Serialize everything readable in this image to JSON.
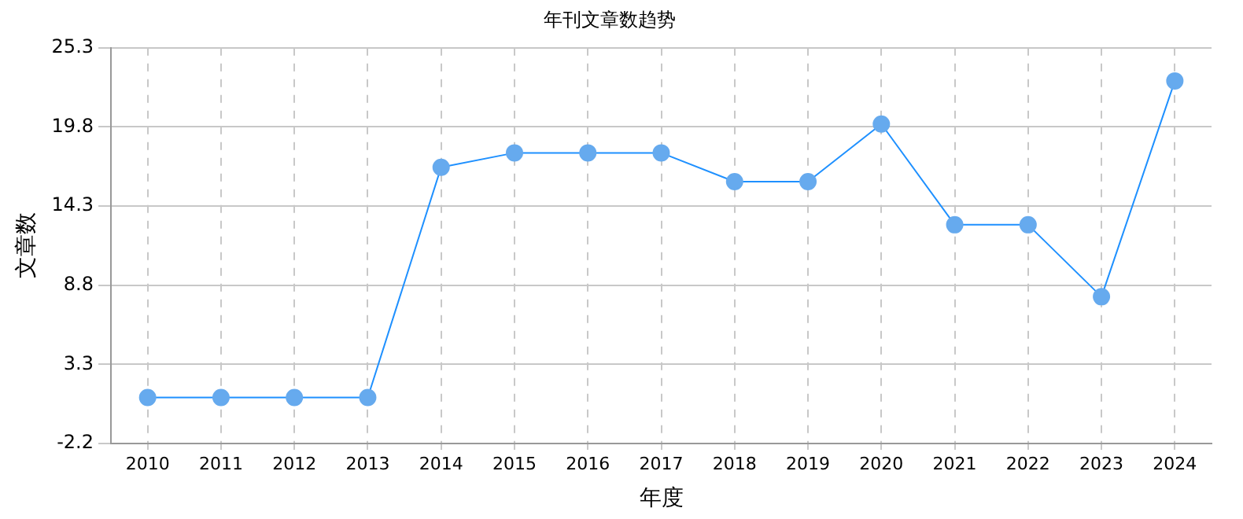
{
  "chart_data": {
    "type": "line",
    "title": "年刊文章数趋势",
    "xlabel": "年度",
    "ylabel": "文章数",
    "categories": [
      "2010",
      "2011",
      "2012",
      "2013",
      "2014",
      "2015",
      "2016",
      "2017",
      "2018",
      "2019",
      "2020",
      "2021",
      "2022",
      "2023",
      "2024"
    ],
    "series": [
      {
        "color": "#1e90ff",
        "values": [
          1,
          1,
          1,
          1,
          17,
          18,
          18,
          18,
          16,
          16,
          20,
          13,
          13,
          8,
          23
        ]
      }
    ],
    "ylim": [
      -2.2,
      25.3
    ],
    "yticks": [
      -2.2,
      3.3,
      8.8,
      14.3,
      19.8,
      25.3
    ],
    "grid": true,
    "legend": false,
    "marker": "circle",
    "line_style": "solid"
  }
}
